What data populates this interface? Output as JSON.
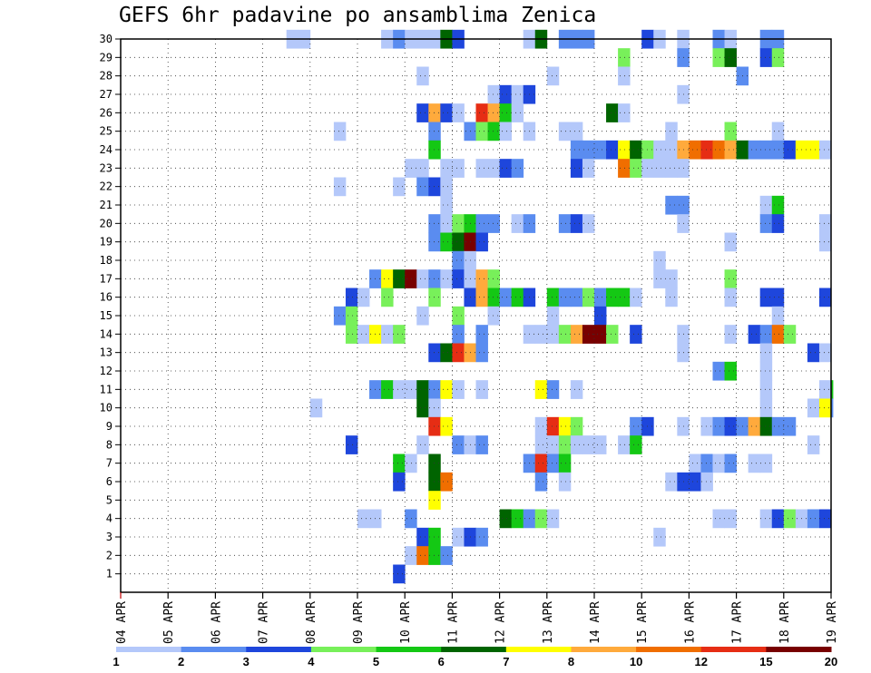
{
  "title": "GEFS 6hr padavine po ansamblima Zenica",
  "colors": {
    "1": "#b4c8fa",
    "2": "#5a8cf0",
    "3": "#1e46dc",
    "4": "#78f05a",
    "5": "#14c814",
    "6": "#006400",
    "7": "#ffff00",
    "8": "#ffaa3c",
    "9": "#f06e00",
    "10": "#e62d14",
    "11": "#780000"
  },
  "chart_data": {
    "type": "heatmap",
    "title": "GEFS 6hr padavine po ansamblima Zenica",
    "y_ticks": [
      1,
      2,
      3,
      4,
      5,
      6,
      7,
      8,
      9,
      10,
      11,
      12,
      13,
      14,
      15,
      16,
      17,
      18,
      19,
      20,
      21,
      22,
      23,
      24,
      25,
      26,
      27,
      28,
      29,
      30
    ],
    "ylim": [
      0,
      30
    ],
    "x_ticks": [
      "04 APR",
      "05 APR",
      "06 APR",
      "07 APR",
      "08 APR",
      "09 APR",
      "10 APR",
      "11 APR",
      "12 APR",
      "13 APR",
      "14 APR",
      "15 APR",
      "16 APR",
      "17 APR",
      "18 APR",
      "19 APR"
    ],
    "x_steps_per_day": 4,
    "xlim_steps": [
      0,
      60
    ],
    "grid": true,
    "colorbar": {
      "ticks": [
        "1",
        "2",
        "3",
        "4",
        "5",
        "6",
        "7",
        "8",
        "10",
        "12",
        "15",
        "20"
      ],
      "colors": [
        "#b4c8fa",
        "#5a8cf0",
        "#1e46dc",
        "#78f05a",
        "#14c814",
        "#006400",
        "#ffff00",
        "#ffaa3c",
        "#f06e00",
        "#e62d14",
        "#780000"
      ]
    },
    "cells_note_codes": "Each row: [step_index, member, color_code]; step_index counts 6-hour steps from 04 APR.",
    "cells": [
      [
        14,
        30,
        1
      ],
      [
        15,
        30,
        1
      ],
      [
        22,
        30,
        1
      ],
      [
        23,
        30,
        2
      ],
      [
        24,
        30,
        1
      ],
      [
        25,
        30,
        1
      ],
      [
        26,
        30,
        1
      ],
      [
        27,
        30,
        6
      ],
      [
        28,
        30,
        3
      ],
      [
        34,
        30,
        1
      ],
      [
        35,
        30,
        6
      ],
      [
        37,
        30,
        2
      ],
      [
        38,
        30,
        2
      ],
      [
        39,
        30,
        2
      ],
      [
        44,
        30,
        3
      ],
      [
        45,
        30,
        1
      ],
      [
        47,
        30,
        1
      ],
      [
        50,
        30,
        2
      ],
      [
        51,
        30,
        1
      ],
      [
        54,
        30,
        2
      ],
      [
        55,
        30,
        2
      ],
      [
        42,
        29,
        4
      ],
      [
        47,
        29,
        2
      ],
      [
        50,
        29,
        4
      ],
      [
        51,
        29,
        6
      ],
      [
        54,
        29,
        3
      ],
      [
        55,
        29,
        4
      ],
      [
        25,
        28,
        1
      ],
      [
        36,
        28,
        1
      ],
      [
        42,
        28,
        1
      ],
      [
        52,
        28,
        2
      ],
      [
        31,
        27,
        1
      ],
      [
        32,
        27,
        3
      ],
      [
        33,
        27,
        1
      ],
      [
        34,
        27,
        3
      ],
      [
        47,
        27,
        1
      ],
      [
        25,
        26,
        3
      ],
      [
        26,
        26,
        8
      ],
      [
        27,
        26,
        3
      ],
      [
        28,
        26,
        1
      ],
      [
        30,
        26,
        10
      ],
      [
        31,
        26,
        8
      ],
      [
        32,
        26,
        5
      ],
      [
        33,
        26,
        1
      ],
      [
        41,
        26,
        6
      ],
      [
        42,
        26,
        1
      ],
      [
        18,
        25,
        1
      ],
      [
        26,
        25,
        2
      ],
      [
        29,
        25,
        2
      ],
      [
        30,
        25,
        4
      ],
      [
        31,
        25,
        5
      ],
      [
        32,
        25,
        1
      ],
      [
        34,
        25,
        1
      ],
      [
        37,
        25,
        1
      ],
      [
        38,
        25,
        1
      ],
      [
        46,
        25,
        1
      ],
      [
        51,
        25,
        4
      ],
      [
        55,
        25,
        1
      ],
      [
        26,
        24,
        5
      ],
      [
        38,
        24,
        2
      ],
      [
        39,
        24,
        2
      ],
      [
        40,
        24,
        2
      ],
      [
        41,
        24,
        3
      ],
      [
        42,
        24,
        7
      ],
      [
        43,
        24,
        6
      ],
      [
        44,
        24,
        4
      ],
      [
        45,
        24,
        1
      ],
      [
        46,
        24,
        1
      ],
      [
        47,
        24,
        8
      ],
      [
        48,
        24,
        9
      ],
      [
        49,
        24,
        10
      ],
      [
        50,
        24,
        9
      ],
      [
        51,
        24,
        8
      ],
      [
        52,
        24,
        6
      ],
      [
        53,
        24,
        2
      ],
      [
        54,
        24,
        2
      ],
      [
        55,
        24,
        2
      ],
      [
        56,
        24,
        3
      ],
      [
        57,
        24,
        7
      ],
      [
        58,
        24,
        7
      ],
      [
        59,
        24,
        1
      ],
      [
        24,
        23,
        1
      ],
      [
        25,
        23,
        1
      ],
      [
        27,
        23,
        1
      ],
      [
        28,
        23,
        1
      ],
      [
        30,
        23,
        1
      ],
      [
        31,
        23,
        1
      ],
      [
        32,
        23,
        3
      ],
      [
        33,
        23,
        2
      ],
      [
        38,
        23,
        3
      ],
      [
        39,
        23,
        1
      ],
      [
        42,
        23,
        9
      ],
      [
        43,
        23,
        4
      ],
      [
        44,
        23,
        1
      ],
      [
        45,
        23,
        1
      ],
      [
        46,
        23,
        1
      ],
      [
        47,
        23,
        1
      ],
      [
        18,
        22,
        1
      ],
      [
        23,
        22,
        1
      ],
      [
        25,
        22,
        2
      ],
      [
        26,
        22,
        3
      ],
      [
        27,
        22,
        1
      ],
      [
        27,
        21,
        1
      ],
      [
        46,
        21,
        2
      ],
      [
        47,
        21,
        2
      ],
      [
        54,
        21,
        1
      ],
      [
        55,
        21,
        5
      ],
      [
        26,
        20,
        2
      ],
      [
        27,
        20,
        1
      ],
      [
        28,
        20,
        4
      ],
      [
        29,
        20,
        5
      ],
      [
        30,
        20,
        2
      ],
      [
        31,
        20,
        2
      ],
      [
        33,
        20,
        1
      ],
      [
        34,
        20,
        2
      ],
      [
        37,
        20,
        2
      ],
      [
        38,
        20,
        3
      ],
      [
        39,
        20,
        1
      ],
      [
        47,
        20,
        1
      ],
      [
        54,
        20,
        2
      ],
      [
        55,
        20,
        3
      ],
      [
        59,
        20,
        1
      ],
      [
        26,
        19,
        2
      ],
      [
        27,
        19,
        5
      ],
      [
        28,
        19,
        6
      ],
      [
        29,
        19,
        11
      ],
      [
        30,
        19,
        3
      ],
      [
        51,
        19,
        1
      ],
      [
        59,
        19,
        1
      ],
      [
        28,
        18,
        2
      ],
      [
        29,
        18,
        1
      ],
      [
        45,
        18,
        1
      ],
      [
        21,
        17,
        2
      ],
      [
        22,
        17,
        7
      ],
      [
        23,
        17,
        6
      ],
      [
        24,
        17,
        11
      ],
      [
        25,
        17,
        1
      ],
      [
        26,
        17,
        2
      ],
      [
        27,
        17,
        1
      ],
      [
        28,
        17,
        3
      ],
      [
        29,
        17,
        1
      ],
      [
        30,
        17,
        8
      ],
      [
        31,
        17,
        4
      ],
      [
        45,
        17,
        1
      ],
      [
        46,
        17,
        1
      ],
      [
        51,
        17,
        4
      ],
      [
        19,
        16,
        3
      ],
      [
        20,
        16,
        1
      ],
      [
        22,
        16,
        4
      ],
      [
        26,
        16,
        4
      ],
      [
        29,
        16,
        3
      ],
      [
        30,
        16,
        8
      ],
      [
        31,
        16,
        5
      ],
      [
        32,
        16,
        2
      ],
      [
        33,
        16,
        5
      ],
      [
        34,
        16,
        3
      ],
      [
        36,
        16,
        5
      ],
      [
        37,
        16,
        2
      ],
      [
        38,
        16,
        2
      ],
      [
        39,
        16,
        4
      ],
      [
        40,
        16,
        2
      ],
      [
        41,
        16,
        5
      ],
      [
        42,
        16,
        5
      ],
      [
        43,
        16,
        1
      ],
      [
        46,
        16,
        1
      ],
      [
        51,
        16,
        1
      ],
      [
        54,
        16,
        3
      ],
      [
        55,
        16,
        3
      ],
      [
        59,
        16,
        3
      ],
      [
        18,
        15,
        2
      ],
      [
        19,
        15,
        4
      ],
      [
        25,
        15,
        1
      ],
      [
        28,
        15,
        4
      ],
      [
        31,
        15,
        1
      ],
      [
        36,
        15,
        1
      ],
      [
        40,
        15,
        3
      ],
      [
        55,
        15,
        1
      ],
      [
        19,
        14,
        4
      ],
      [
        20,
        14,
        1
      ],
      [
        21,
        14,
        7
      ],
      [
        22,
        14,
        1
      ],
      [
        23,
        14,
        4
      ],
      [
        28,
        14,
        2
      ],
      [
        30,
        14,
        2
      ],
      [
        34,
        14,
        1
      ],
      [
        35,
        14,
        1
      ],
      [
        36,
        14,
        1
      ],
      [
        37,
        14,
        4
      ],
      [
        38,
        14,
        8
      ],
      [
        39,
        14,
        11
      ],
      [
        40,
        14,
        11
      ],
      [
        41,
        14,
        4
      ],
      [
        43,
        14,
        3
      ],
      [
        47,
        14,
        1
      ],
      [
        51,
        14,
        1
      ],
      [
        53,
        14,
        3
      ],
      [
        54,
        14,
        2
      ],
      [
        55,
        14,
        9
      ],
      [
        56,
        14,
        4
      ],
      [
        26,
        13,
        3
      ],
      [
        27,
        13,
        6
      ],
      [
        28,
        13,
        10
      ],
      [
        29,
        13,
        8
      ],
      [
        30,
        13,
        2
      ],
      [
        47,
        13,
        1
      ],
      [
        54,
        13,
        1
      ],
      [
        58,
        13,
        3
      ],
      [
        59,
        13,
        1
      ],
      [
        50,
        12,
        2
      ],
      [
        51,
        12,
        5
      ],
      [
        54,
        12,
        1
      ],
      [
        21,
        11,
        2
      ],
      [
        22,
        11,
        5
      ],
      [
        23,
        11,
        1
      ],
      [
        24,
        11,
        1
      ],
      [
        25,
        11,
        6
      ],
      [
        26,
        11,
        2
      ],
      [
        27,
        11,
        7
      ],
      [
        28,
        11,
        1
      ],
      [
        30,
        11,
        1
      ],
      [
        35,
        11,
        7
      ],
      [
        36,
        11,
        2
      ],
      [
        38,
        11,
        1
      ],
      [
        54,
        11,
        1
      ],
      [
        59,
        11,
        1
      ],
      [
        60,
        11,
        5
      ],
      [
        16,
        10,
        1
      ],
      [
        25,
        10,
        6
      ],
      [
        26,
        10,
        1
      ],
      [
        54,
        10,
        1
      ],
      [
        58,
        10,
        1
      ],
      [
        59,
        10,
        7
      ],
      [
        60,
        10,
        2
      ],
      [
        26,
        9,
        10
      ],
      [
        27,
        9,
        7
      ],
      [
        35,
        9,
        1
      ],
      [
        36,
        9,
        10
      ],
      [
        37,
        9,
        7
      ],
      [
        38,
        9,
        4
      ],
      [
        43,
        9,
        2
      ],
      [
        44,
        9,
        3
      ],
      [
        47,
        9,
        1
      ],
      [
        49,
        9,
        1
      ],
      [
        50,
        9,
        2
      ],
      [
        51,
        9,
        3
      ],
      [
        52,
        9,
        2
      ],
      [
        53,
        9,
        8
      ],
      [
        54,
        9,
        6
      ],
      [
        55,
        9,
        2
      ],
      [
        56,
        9,
        2
      ],
      [
        19,
        8,
        3
      ],
      [
        25,
        8,
        1
      ],
      [
        28,
        8,
        2
      ],
      [
        29,
        8,
        1
      ],
      [
        30,
        8,
        2
      ],
      [
        35,
        8,
        1
      ],
      [
        36,
        8,
        1
      ],
      [
        37,
        8,
        4
      ],
      [
        38,
        8,
        1
      ],
      [
        39,
        8,
        1
      ],
      [
        40,
        8,
        1
      ],
      [
        42,
        8,
        1
      ],
      [
        43,
        8,
        5
      ],
      [
        58,
        8,
        1
      ],
      [
        23,
        7,
        5
      ],
      [
        24,
        7,
        1
      ],
      [
        26,
        7,
        6
      ],
      [
        34,
        7,
        2
      ],
      [
        35,
        7,
        10
      ],
      [
        36,
        7,
        2
      ],
      [
        37,
        7,
        5
      ],
      [
        48,
        7,
        1
      ],
      [
        49,
        7,
        2
      ],
      [
        50,
        7,
        1
      ],
      [
        51,
        7,
        2
      ],
      [
        53,
        7,
        1
      ],
      [
        54,
        7,
        1
      ],
      [
        23,
        6,
        3
      ],
      [
        26,
        6,
        6
      ],
      [
        27,
        6,
        9
      ],
      [
        35,
        6,
        2
      ],
      [
        37,
        6,
        1
      ],
      [
        46,
        6,
        1
      ],
      [
        47,
        6,
        3
      ],
      [
        48,
        6,
        3
      ],
      [
        49,
        6,
        1
      ],
      [
        26,
        5,
        7
      ],
      [
        20,
        4,
        1
      ],
      [
        21,
        4,
        1
      ],
      [
        24,
        4,
        2
      ],
      [
        32,
        4,
        6
      ],
      [
        33,
        4,
        5
      ],
      [
        34,
        4,
        2
      ],
      [
        35,
        4,
        4
      ],
      [
        36,
        4,
        1
      ],
      [
        50,
        4,
        1
      ],
      [
        51,
        4,
        1
      ],
      [
        54,
        4,
        1
      ],
      [
        55,
        4,
        3
      ],
      [
        56,
        4,
        4
      ],
      [
        57,
        4,
        1
      ],
      [
        58,
        4,
        2
      ],
      [
        59,
        4,
        3
      ],
      [
        25,
        3,
        3
      ],
      [
        26,
        3,
        5
      ],
      [
        28,
        3,
        1
      ],
      [
        29,
        3,
        3
      ],
      [
        30,
        3,
        2
      ],
      [
        45,
        3,
        1
      ],
      [
        24,
        2,
        1
      ],
      [
        25,
        2,
        9
      ],
      [
        26,
        2,
        5
      ],
      [
        27,
        2,
        2
      ],
      [
        23,
        1,
        3
      ]
    ]
  }
}
